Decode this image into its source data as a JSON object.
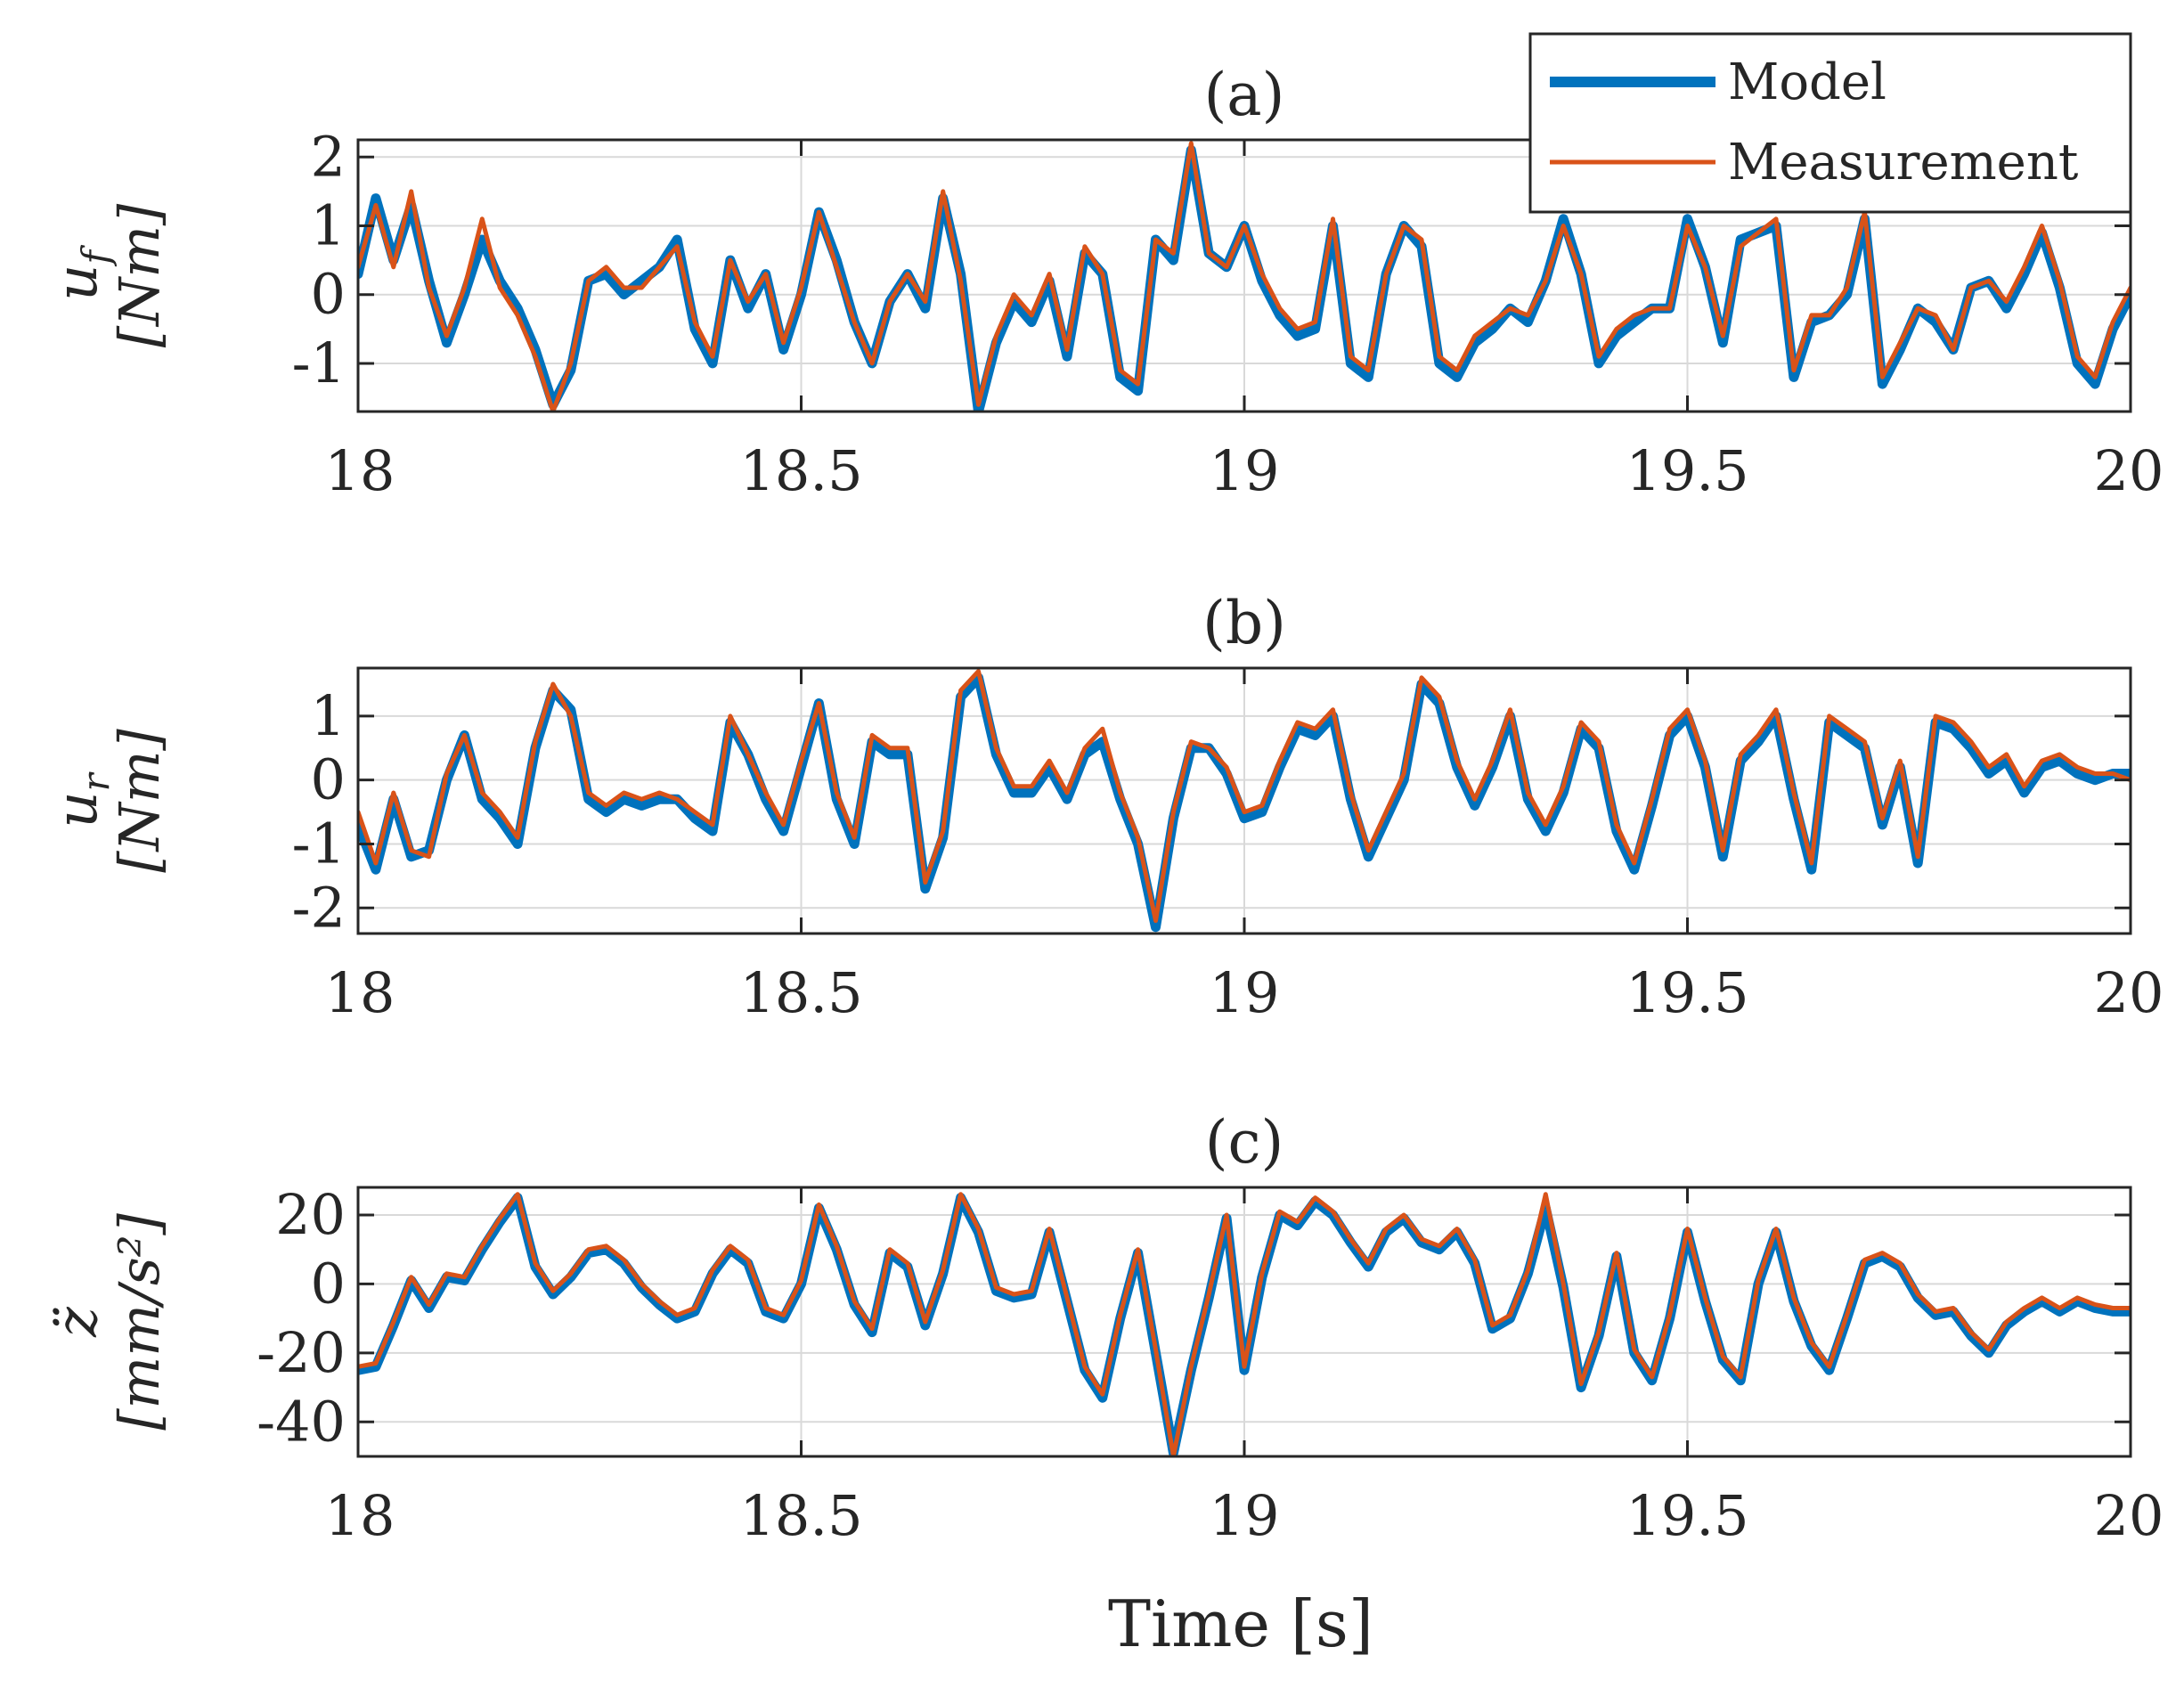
{
  "figure": {
    "xlabel": "Time [s]",
    "colors": {
      "model": "#0072BD",
      "measurement": "#D95319",
      "grid": "#d9d9d9",
      "axis": "#262626"
    }
  },
  "legend": {
    "entries": [
      "Model",
      "Measurement"
    ]
  },
  "chart_data": [
    {
      "type": "line",
      "id": "a",
      "title": "(a)",
      "ylabel_symbol": "u_f",
      "ylabel_symbol_text": "u",
      "ylabel_subscript": "f",
      "ylabel_unit": "[Nm]",
      "xlim": [
        18,
        20
      ],
      "ylim": [
        -1.7,
        2.25
      ],
      "xticks": [
        18,
        18.5,
        19,
        19.5,
        20
      ],
      "xtick_labels": [
        "18",
        "18.5",
        "19",
        "19.5",
        "20"
      ],
      "yticks": [
        -1,
        0,
        1,
        2
      ],
      "ytick_labels": [
        "-1",
        "0",
        "1",
        "2"
      ],
      "grid": true,
      "x": [
        18.0,
        18.02,
        18.04,
        18.06,
        18.08,
        18.1,
        18.12,
        18.14,
        18.16,
        18.18,
        18.2,
        18.22,
        18.24,
        18.26,
        18.28,
        18.3,
        18.32,
        18.34,
        18.36,
        18.38,
        18.4,
        18.42,
        18.44,
        18.46,
        18.48,
        18.5,
        18.52,
        18.54,
        18.56,
        18.58,
        18.6,
        18.62,
        18.64,
        18.66,
        18.68,
        18.7,
        18.72,
        18.74,
        18.76,
        18.78,
        18.8,
        18.82,
        18.84,
        18.86,
        18.88,
        18.9,
        18.92,
        18.94,
        18.96,
        18.98,
        19.0,
        19.02,
        19.04,
        19.06,
        19.08,
        19.1,
        19.12,
        19.14,
        19.16,
        19.18,
        19.2,
        19.22,
        19.24,
        19.26,
        19.28,
        19.3,
        19.32,
        19.34,
        19.36,
        19.38,
        19.4,
        19.42,
        19.44,
        19.46,
        19.48,
        19.5,
        19.52,
        19.54,
        19.56,
        19.58,
        19.6,
        19.62,
        19.64,
        19.66,
        19.68,
        19.7,
        19.72,
        19.74,
        19.76,
        19.78,
        19.8,
        19.82,
        19.84,
        19.86,
        19.88,
        19.9,
        19.92,
        19.94,
        19.96,
        19.98,
        20.0
      ],
      "series": [
        {
          "name": "Model",
          "values": [
            0.3,
            1.4,
            0.5,
            1.3,
            0.2,
            -0.7,
            0.0,
            0.8,
            0.2,
            -0.2,
            -0.8,
            -1.6,
            -1.1,
            0.2,
            0.3,
            0.0,
            0.2,
            0.4,
            0.8,
            -0.5,
            -1.0,
            0.5,
            -0.2,
            0.3,
            -0.8,
            0.0,
            1.2,
            0.5,
            -0.4,
            -1.0,
            -0.1,
            0.3,
            -0.2,
            1.4,
            0.3,
            -1.7,
            -0.7,
            -0.1,
            -0.4,
            0.2,
            -0.9,
            0.6,
            0.3,
            -1.2,
            -1.4,
            0.8,
            0.5,
            2.1,
            0.6,
            0.4,
            1.0,
            0.2,
            -0.3,
            -0.6,
            -0.5,
            1.0,
            -1.0,
            -1.2,
            0.3,
            1.0,
            0.7,
            -1.0,
            -1.2,
            -0.7,
            -0.5,
            -0.2,
            -0.4,
            0.2,
            1.1,
            0.3,
            -1.0,
            -0.6,
            -0.4,
            -0.2,
            -0.2,
            1.1,
            0.4,
            -0.7,
            0.8,
            0.9,
            1.0,
            -1.2,
            -0.4,
            -0.3,
            0.0,
            1.1,
            -1.3,
            -0.8,
            -0.2,
            -0.4,
            -0.8,
            0.1,
            0.2,
            -0.2,
            0.3,
            0.9,
            0.1,
            -1.0,
            -1.3,
            -0.5,
            0.0
          ]
        },
        {
          "name": "Measurement",
          "values": [
            0.4,
            1.3,
            0.4,
            1.5,
            0.1,
            -0.6,
            0.1,
            1.1,
            0.1,
            -0.3,
            -0.9,
            -1.7,
            -1.0,
            0.2,
            0.4,
            0.1,
            0.1,
            0.4,
            0.7,
            -0.4,
            -0.9,
            0.5,
            -0.1,
            0.3,
            -0.7,
            0.1,
            1.2,
            0.4,
            -0.4,
            -1.0,
            -0.1,
            0.3,
            -0.1,
            1.5,
            0.2,
            -1.6,
            -0.6,
            0.0,
            -0.3,
            0.3,
            -0.8,
            0.7,
            0.3,
            -1.1,
            -1.3,
            0.8,
            0.6,
            2.2,
            0.6,
            0.4,
            1.0,
            0.3,
            -0.2,
            -0.5,
            -0.4,
            1.1,
            -0.9,
            -1.1,
            0.3,
            1.0,
            0.8,
            -0.9,
            -1.1,
            -0.6,
            -0.4,
            -0.2,
            -0.3,
            0.2,
            1.0,
            0.3,
            -0.9,
            -0.5,
            -0.3,
            -0.2,
            -0.2,
            1.0,
            0.4,
            -0.6,
            0.7,
            0.9,
            1.1,
            -1.1,
            -0.3,
            -0.3,
            0.1,
            1.2,
            -1.2,
            -0.7,
            -0.2,
            -0.3,
            -0.8,
            0.1,
            0.2,
            -0.1,
            0.4,
            1.0,
            0.2,
            -0.9,
            -1.2,
            -0.4,
            0.1
          ]
        }
      ]
    },
    {
      "type": "line",
      "id": "b",
      "title": "(b)",
      "ylabel_symbol": "u_r",
      "ylabel_symbol_text": "u",
      "ylabel_subscript": "r",
      "ylabel_unit": "[Nm]",
      "xlim": [
        18,
        20
      ],
      "ylim": [
        -2.4,
        1.75
      ],
      "xticks": [
        18,
        18.5,
        19,
        19.5,
        20
      ],
      "xtick_labels": [
        "18",
        "18.5",
        "19",
        "19.5",
        "20"
      ],
      "yticks": [
        -2,
        -1,
        0,
        1
      ],
      "ytick_labels": [
        "-2",
        "-1",
        "0",
        "1"
      ],
      "grid": true,
      "x": [
        18.0,
        18.02,
        18.04,
        18.06,
        18.08,
        18.1,
        18.12,
        18.14,
        18.16,
        18.18,
        18.2,
        18.22,
        18.24,
        18.26,
        18.28,
        18.3,
        18.32,
        18.34,
        18.36,
        18.38,
        18.4,
        18.42,
        18.44,
        18.46,
        18.48,
        18.5,
        18.52,
        18.54,
        18.56,
        18.58,
        18.6,
        18.62,
        18.64,
        18.66,
        18.68,
        18.7,
        18.72,
        18.74,
        18.76,
        18.78,
        18.8,
        18.82,
        18.84,
        18.86,
        18.88,
        18.9,
        18.92,
        18.94,
        18.96,
        18.98,
        19.0,
        19.02,
        19.04,
        19.06,
        19.08,
        19.1,
        19.12,
        19.14,
        19.16,
        19.18,
        19.2,
        19.22,
        19.24,
        19.26,
        19.28,
        19.3,
        19.32,
        19.34,
        19.36,
        19.38,
        19.4,
        19.42,
        19.44,
        19.46,
        19.48,
        19.5,
        19.52,
        19.54,
        19.56,
        19.58,
        19.6,
        19.62,
        19.64,
        19.66,
        19.68,
        19.7,
        19.72,
        19.74,
        19.76,
        19.78,
        19.8,
        19.82,
        19.84,
        19.86,
        19.88,
        19.9,
        19.92,
        19.94,
        19.96,
        19.98,
        20.0
      ],
      "series": [
        {
          "name": "Model",
          "values": [
            -0.7,
            -1.4,
            -0.3,
            -1.2,
            -1.1,
            0.0,
            0.7,
            -0.3,
            -0.6,
            -1.0,
            0.5,
            1.4,
            1.1,
            -0.3,
            -0.5,
            -0.3,
            -0.4,
            -0.3,
            -0.3,
            -0.6,
            -0.8,
            0.9,
            0.4,
            -0.3,
            -0.8,
            0.2,
            1.2,
            -0.3,
            -1.0,
            0.6,
            0.4,
            0.4,
            -1.7,
            -0.9,
            1.3,
            1.6,
            0.4,
            -0.2,
            -0.2,
            0.2,
            -0.3,
            0.4,
            0.6,
            -0.3,
            -1.0,
            -2.3,
            -0.6,
            0.5,
            0.5,
            0.1,
            -0.6,
            -0.5,
            0.2,
            0.8,
            0.7,
            1.0,
            -0.3,
            -1.2,
            -0.6,
            0.0,
            1.5,
            1.2,
            0.2,
            -0.4,
            0.2,
            1.0,
            -0.3,
            -0.8,
            -0.2,
            0.8,
            0.5,
            -0.8,
            -1.4,
            -0.4,
            0.7,
            1.0,
            0.2,
            -1.2,
            0.3,
            0.6,
            1.0,
            -0.3,
            -1.4,
            0.9,
            0.7,
            0.5,
            -0.7,
            0.2,
            -1.3,
            0.9,
            0.8,
            0.5,
            0.1,
            0.3,
            -0.2,
            0.2,
            0.3,
            0.1,
            0.0,
            0.1,
            0.1
          ]
        },
        {
          "name": "Measurement",
          "values": [
            -0.5,
            -1.3,
            -0.2,
            -1.1,
            -1.2,
            0.1,
            0.7,
            -0.2,
            -0.5,
            -0.9,
            0.6,
            1.5,
            1.0,
            -0.2,
            -0.4,
            -0.2,
            -0.3,
            -0.2,
            -0.3,
            -0.5,
            -0.7,
            1.0,
            0.4,
            -0.2,
            -0.7,
            0.3,
            1.2,
            -0.2,
            -0.9,
            0.7,
            0.5,
            0.5,
            -1.6,
            -0.8,
            1.4,
            1.7,
            0.5,
            -0.1,
            -0.1,
            0.3,
            -0.2,
            0.5,
            0.8,
            -0.2,
            -0.9,
            -2.2,
            -0.5,
            0.6,
            0.5,
            0.2,
            -0.5,
            -0.4,
            0.3,
            0.9,
            0.8,
            1.1,
            -0.2,
            -1.1,
            -0.5,
            0.1,
            1.6,
            1.3,
            0.3,
            -0.3,
            0.3,
            1.1,
            -0.2,
            -0.7,
            -0.1,
            0.9,
            0.6,
            -0.7,
            -1.3,
            -0.3,
            0.8,
            1.1,
            0.3,
            -1.1,
            0.4,
            0.7,
            1.1,
            -0.2,
            -1.3,
            1.0,
            0.8,
            0.6,
            -0.6,
            0.3,
            -1.2,
            1.0,
            0.9,
            0.6,
            0.2,
            0.4,
            -0.1,
            0.3,
            0.4,
            0.2,
            0.1,
            0.1,
            0.0
          ]
        }
      ]
    },
    {
      "type": "line",
      "id": "c",
      "title": "(c)",
      "ylabel_symbol": "z double dot",
      "ylabel_symbol_text": "z̈",
      "ylabel_subscript": "",
      "ylabel_unit": "[mm/s²]",
      "xlim": [
        18,
        20
      ],
      "ylim": [
        -50,
        28
      ],
      "xticks": [
        18,
        18.5,
        19,
        19.5,
        20
      ],
      "xtick_labels": [
        "18",
        "18.5",
        "19",
        "19.5",
        "20"
      ],
      "yticks": [
        -40,
        -20,
        0,
        20
      ],
      "ytick_labels": [
        "-40",
        "-20",
        "0",
        "20"
      ],
      "grid": true,
      "x": [
        18.0,
        18.02,
        18.04,
        18.06,
        18.08,
        18.1,
        18.12,
        18.14,
        18.16,
        18.18,
        18.2,
        18.22,
        18.24,
        18.26,
        18.28,
        18.3,
        18.32,
        18.34,
        18.36,
        18.38,
        18.4,
        18.42,
        18.44,
        18.46,
        18.48,
        18.5,
        18.52,
        18.54,
        18.56,
        18.58,
        18.6,
        18.62,
        18.64,
        18.66,
        18.68,
        18.7,
        18.72,
        18.74,
        18.76,
        18.78,
        18.8,
        18.82,
        18.84,
        18.86,
        18.88,
        18.9,
        18.92,
        18.94,
        18.96,
        18.98,
        19.0,
        19.02,
        19.04,
        19.06,
        19.08,
        19.1,
        19.12,
        19.14,
        19.16,
        19.18,
        19.2,
        19.22,
        19.24,
        19.26,
        19.28,
        19.3,
        19.32,
        19.34,
        19.36,
        19.38,
        19.4,
        19.42,
        19.44,
        19.46,
        19.48,
        19.5,
        19.52,
        19.54,
        19.56,
        19.58,
        19.6,
        19.62,
        19.64,
        19.66,
        19.68,
        19.7,
        19.72,
        19.74,
        19.76,
        19.78,
        19.8,
        19.82,
        19.84,
        19.86,
        19.88,
        19.9,
        19.92,
        19.94,
        19.96,
        19.98,
        20.0
      ],
      "series": [
        {
          "name": "Model",
          "values": [
            -25.0,
            -24.0,
            -12.0,
            1.0,
            -7.0,
            2.0,
            1.0,
            10.0,
            18.0,
            25.0,
            5.0,
            -3.0,
            2.0,
            9.0,
            10.0,
            6.0,
            -1.0,
            -6.0,
            -10.0,
            -8.0,
            3.0,
            10.0,
            6.0,
            -8.0,
            -10.0,
            0.0,
            22.0,
            10.0,
            -6.0,
            -14.0,
            9.0,
            5.0,
            -12.0,
            3.0,
            25.0,
            15.0,
            -2.0,
            -4.0,
            -3.0,
            15.0,
            -5.0,
            -25.0,
            -33.0,
            -10.0,
            9.0,
            -20.0,
            -49.0,
            -25.0,
            -4.0,
            19.0,
            -25.0,
            2.0,
            20.0,
            17.0,
            24.0,
            20.0,
            12.0,
            5.0,
            15.0,
            19.0,
            12.0,
            10.0,
            15.0,
            6.0,
            -13.0,
            -10.0,
            3.0,
            22.0,
            -1.0,
            -30.0,
            -15.0,
            8.0,
            -20.0,
            -28.0,
            -10.0,
            15.0,
            -5.0,
            -22.0,
            -28.0,
            0.0,
            15.0,
            -5.0,
            -18.0,
            -25.0,
            -10.0,
            6.0,
            8.0,
            5.0,
            -4.0,
            -9.0,
            -8.0,
            -15.0,
            -20.0,
            -12.0,
            -8.0,
            -5.0,
            -8.0,
            -5.0,
            -7.0,
            -8.0,
            -8.0
          ]
        },
        {
          "name": "Measurement",
          "values": [
            -24.0,
            -23.0,
            -11.0,
            2.0,
            -6.0,
            3.0,
            2.0,
            11.0,
            19.0,
            26.0,
            6.0,
            -2.0,
            3.0,
            10.0,
            11.0,
            7.0,
            0.0,
            -5.0,
            -9.0,
            -7.0,
            4.0,
            11.0,
            7.0,
            -7.0,
            -9.0,
            1.0,
            23.0,
            11.0,
            -5.0,
            -13.0,
            10.0,
            6.0,
            -11.0,
            4.0,
            26.0,
            16.0,
            -1.0,
            -3.0,
            -2.0,
            16.0,
            -4.0,
            -24.0,
            -32.0,
            -9.0,
            10.0,
            -19.0,
            -50.0,
            -24.0,
            -3.0,
            20.0,
            -24.0,
            3.0,
            21.0,
            18.0,
            25.0,
            21.0,
            13.0,
            6.0,
            16.0,
            20.0,
            13.0,
            11.0,
            16.0,
            7.0,
            -12.0,
            -9.0,
            4.0,
            26.0,
            0.0,
            -29.0,
            -14.0,
            9.0,
            -19.0,
            -27.0,
            -9.0,
            16.0,
            -4.0,
            -21.0,
            -27.0,
            1.0,
            16.0,
            -4.0,
            -17.0,
            -24.0,
            -9.0,
            7.0,
            9.0,
            6.0,
            -3.0,
            -8.0,
            -7.0,
            -14.0,
            -19.0,
            -11.0,
            -7.0,
            -4.0,
            -7.0,
            -4.0,
            -6.0,
            -7.0,
            -7.0
          ]
        }
      ]
    }
  ]
}
